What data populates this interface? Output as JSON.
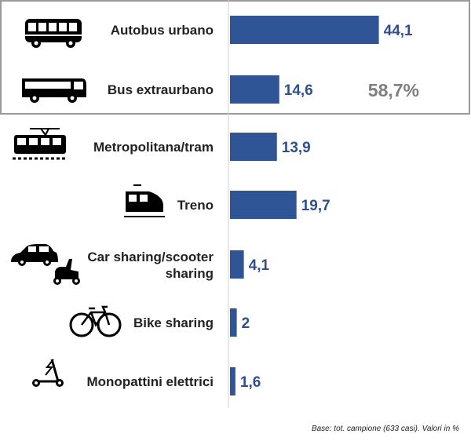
{
  "chart_data": {
    "type": "bar",
    "orientation": "horizontal",
    "categories": [
      "Autobus urbano",
      "Bus extraurbano",
      "Metropolitana/tram",
      "Treno",
      "Car sharing/scooter sharing",
      "Bike sharing",
      "Monopattini elettrici"
    ],
    "category_icons": [
      "bus-icon",
      "coach-icon",
      "tram-icon",
      "train-icon",
      "car-scooter-icon",
      "bicycle-icon",
      "kick-scooter-icon"
    ],
    "values": [
      44.1,
      14.6,
      13.9,
      19.7,
      4.1,
      2,
      1.6
    ],
    "value_labels": [
      "44,1",
      "14,6",
      "13,9",
      "19,7",
      "4,1",
      "2",
      "1,6"
    ],
    "group": {
      "label": "58,7%",
      "categories": [
        "Autobus urbano",
        "Bus extraurbano"
      ]
    },
    "xlim": [
      0,
      60
    ],
    "grid": false,
    "bar_color": "#2f5597",
    "label_color": "#2f4f8f"
  },
  "footnote": "Base: tot. campione (633 casi). Valori in %"
}
